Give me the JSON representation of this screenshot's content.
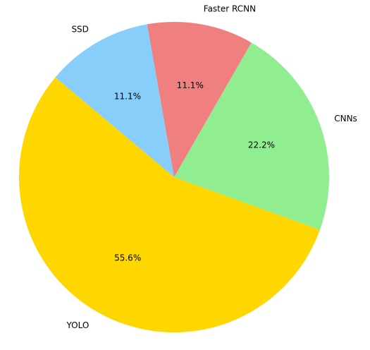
{
  "chart_data": {
    "type": "pie",
    "start_angle_deg": 140,
    "direction": "counterclockwise",
    "slices": [
      {
        "label": "YOLO",
        "value": 55.6,
        "pct_label": "55.6%",
        "color": "#FFD700"
      },
      {
        "label": "CNNs",
        "value": 22.2,
        "pct_label": "22.2%",
        "color": "#90EE90"
      },
      {
        "label": "Faster RCNN",
        "value": 11.1,
        "pct_label": "11.1%",
        "color": "#F08080"
      },
      {
        "label": "SSD",
        "value": 11.1,
        "pct_label": "11.1%",
        "color": "#87CEFA"
      }
    ]
  }
}
